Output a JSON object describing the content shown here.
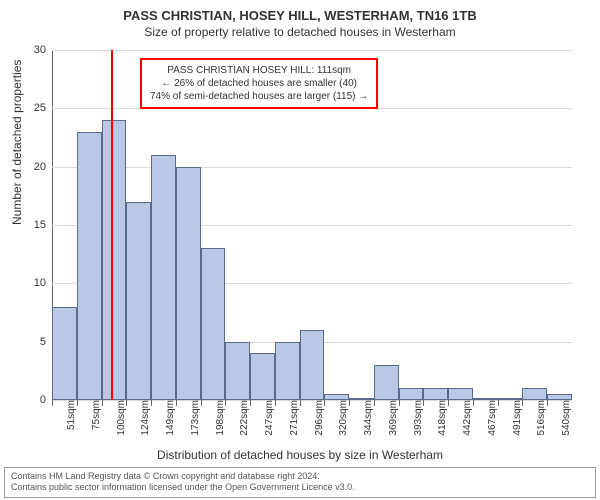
{
  "title": "PASS CHRISTIAN, HOSEY HILL, WESTERHAM, TN16 1TB",
  "subtitle": "Size of property relative to detached houses in Westerham",
  "xlabel": "Distribution of detached houses by size in Westerham",
  "ylabel": "Number of detached properties",
  "chart": {
    "type": "histogram",
    "ylim": [
      0,
      30
    ],
    "ytick_step": 5,
    "yticks": [
      0,
      5,
      10,
      15,
      20,
      25,
      30
    ],
    "categories": [
      "51sqm",
      "75sqm",
      "100sqm",
      "124sqm",
      "149sqm",
      "173sqm",
      "198sqm",
      "222sqm",
      "247sqm",
      "271sqm",
      "296sqm",
      "320sqm",
      "344sqm",
      "369sqm",
      "393sqm",
      "418sqm",
      "442sqm",
      "467sqm",
      "491sqm",
      "516sqm",
      "540sqm"
    ],
    "values": [
      8,
      23,
      24,
      17,
      21,
      20,
      13,
      5,
      4,
      5,
      6,
      0.5,
      0,
      3,
      1,
      1,
      1,
      0,
      0,
      1,
      0.5
    ],
    "bar_fill": "#b9c8e4",
    "bar_stroke": "#5a6b8c",
    "background_color": "#ffffff",
    "grid_color": "#d9d9d9",
    "axis_color": "#666666",
    "text_color": "#333333",
    "label_fontsize": 12,
    "tick_fontsize": 10,
    "bar_width_ratio": 1.0
  },
  "marker": {
    "visible": true,
    "position_index": 2.4,
    "color": "#ff0000"
  },
  "annotation": {
    "border_color": "#ff0000",
    "line1": "PASS CHRISTIAN HOSEY HILL: 111sqm",
    "line2": "← 26% of detached houses are smaller (40)",
    "line3": "74% of semi-detached houses are larger (115) →"
  },
  "footer": {
    "line1": "Contains HM Land Registry data © Crown copyright and database right 2024.",
    "line2": "Contains public sector information licensed under the Open Government Licence v3.0."
  }
}
